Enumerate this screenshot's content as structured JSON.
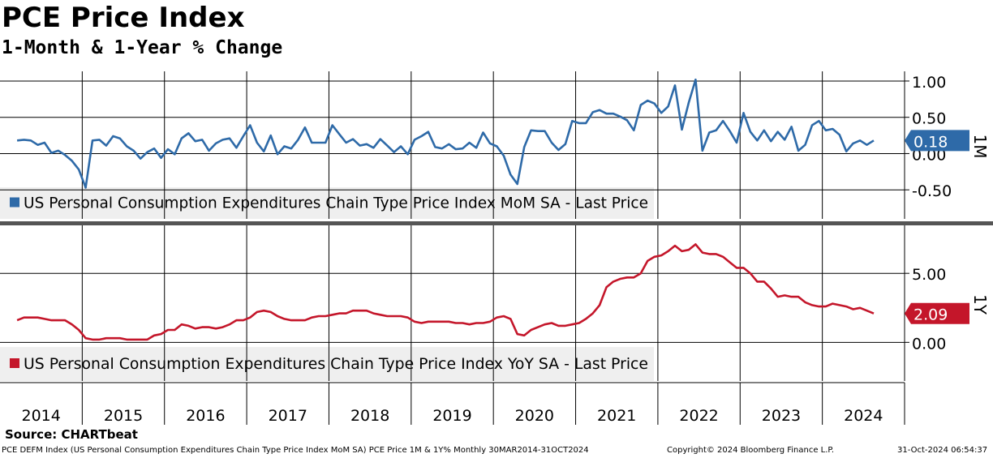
{
  "title": "PCE Price Index",
  "subtitle": "1-Month & 1-Year % Change",
  "source": "Source: CHARTbeat",
  "footer": {
    "description": "PCE DEFM Index (US Personal Consumption Expenditures Chain Type Price Index MoM SA) PCE Price 1M & 1Y%  Monthly 30MAR2014-31OCT2024",
    "copyright": "Copyright© 2024 Bloomberg Finance L.P.",
    "timestamp": "31-Oct-2024 06:54:37"
  },
  "colors": {
    "mom": "#2e6aa8",
    "yoy": "#c4162a",
    "grid": "#000000"
  },
  "chart_data": [
    {
      "type": "line",
      "panel": "1M",
      "panel_label": "1M",
      "legend": "US Personal Consumption Expenditures Chain Type Price Index MoM SA - Last Price",
      "last_value_label": "0.18",
      "ylim": [
        -0.9,
        1.1
      ],
      "yticks": [
        -0.5,
        0.0,
        0.5,
        1.0
      ],
      "ytick_labels": [
        "-0.50",
        "0.00",
        "0.50",
        "1.00"
      ],
      "grid": true,
      "legend_position": "bottom-left",
      "series": [
        {
          "start": "2014-03",
          "values": [
            0.18,
            0.19,
            0.18,
            0.12,
            0.15,
            0.01,
            0.04,
            -0.02,
            -0.1,
            -0.22,
            -0.47,
            0.18,
            0.19,
            0.11,
            0.24,
            0.21,
            0.1,
            0.04,
            -0.07,
            0.02,
            0.07,
            -0.06,
            0.06,
            -0.01,
            0.21,
            0.28,
            0.17,
            0.19,
            0.04,
            0.14,
            0.19,
            0.21,
            0.08,
            0.24,
            0.39,
            0.15,
            0.03,
            0.25,
            -0.01,
            0.1,
            0.07,
            0.19,
            0.36,
            0.15,
            0.15,
            0.15,
            0.39,
            0.27,
            0.15,
            0.2,
            0.11,
            0.13,
            0.08,
            0.2,
            0.11,
            0.02,
            0.1,
            -0.01,
            0.19,
            0.24,
            0.3,
            0.09,
            0.07,
            0.13,
            0.06,
            0.07,
            0.15,
            0.08,
            0.29,
            0.14,
            0.1,
            -0.03,
            -0.29,
            -0.42,
            0.09,
            0.32,
            0.31,
            0.31,
            0.15,
            0.05,
            0.13,
            0.45,
            0.42,
            0.42,
            0.57,
            0.6,
            0.55,
            0.55,
            0.51,
            0.46,
            0.32,
            0.67,
            0.73,
            0.69,
            0.56,
            0.65,
            0.94,
            0.33,
            0.7,
            1.02,
            0.04,
            0.29,
            0.32,
            0.45,
            0.31,
            0.15,
            0.56,
            0.3,
            0.18,
            0.32,
            0.17,
            0.3,
            0.19,
            0.37,
            0.04,
            0.12,
            0.39,
            0.45,
            0.32,
            0.34,
            0.26,
            0.03,
            0.14,
            0.18,
            0.12,
            0.18
          ]
        }
      ]
    },
    {
      "type": "line",
      "panel": "1Y",
      "panel_label": "1Y",
      "legend": "US Personal Consumption Expenditures Chain Type Price Index YoY SA - Last Price",
      "last_value_label": "2.09",
      "ylim": [
        -2.8,
        8.3
      ],
      "yticks": [
        0.0,
        5.0
      ],
      "ytick_labels": [
        "0.00",
        "5.00"
      ],
      "grid": true,
      "legend_position": "bottom-left",
      "series": [
        {
          "start": "2014-03",
          "values": [
            1.6,
            1.8,
            1.8,
            1.8,
            1.7,
            1.6,
            1.6,
            1.6,
            1.3,
            0.9,
            0.3,
            0.2,
            0.2,
            0.3,
            0.3,
            0.3,
            0.2,
            0.2,
            0.2,
            0.2,
            0.5,
            0.6,
            0.9,
            0.9,
            1.3,
            1.2,
            1.0,
            1.1,
            1.1,
            1.0,
            1.1,
            1.3,
            1.6,
            1.6,
            1.8,
            2.2,
            2.3,
            2.2,
            1.9,
            1.7,
            1.6,
            1.6,
            1.6,
            1.8,
            1.9,
            1.9,
            2.0,
            2.1,
            2.1,
            2.3,
            2.3,
            2.3,
            2.1,
            2.0,
            1.9,
            1.9,
            1.9,
            1.8,
            1.5,
            1.4,
            1.5,
            1.5,
            1.5,
            1.5,
            1.4,
            1.4,
            1.3,
            1.4,
            1.4,
            1.5,
            1.8,
            1.9,
            1.7,
            0.6,
            0.5,
            0.9,
            1.1,
            1.3,
            1.4,
            1.2,
            1.2,
            1.3,
            1.4,
            1.7,
            2.1,
            2.7,
            4.0,
            4.4,
            4.6,
            4.7,
            4.7,
            5.0,
            5.9,
            6.2,
            6.3,
            6.6,
            7.0,
            6.6,
            6.7,
            7.1,
            6.5,
            6.4,
            6.4,
            6.2,
            5.8,
            5.4,
            5.4,
            5.0,
            4.4,
            4.4,
            3.9,
            3.3,
            3.4,
            3.3,
            3.3,
            2.9,
            2.7,
            2.6,
            2.6,
            2.8,
            2.7,
            2.6,
            2.4,
            2.5,
            2.3,
            2.09
          ]
        }
      ]
    }
  ],
  "x_axis": {
    "type": "date",
    "start": "2014-01",
    "end": "2024-12",
    "labels": [
      "2014",
      "2015",
      "2016",
      "2017",
      "2018",
      "2019",
      "2020",
      "2021",
      "2022",
      "2023",
      "2024"
    ]
  }
}
